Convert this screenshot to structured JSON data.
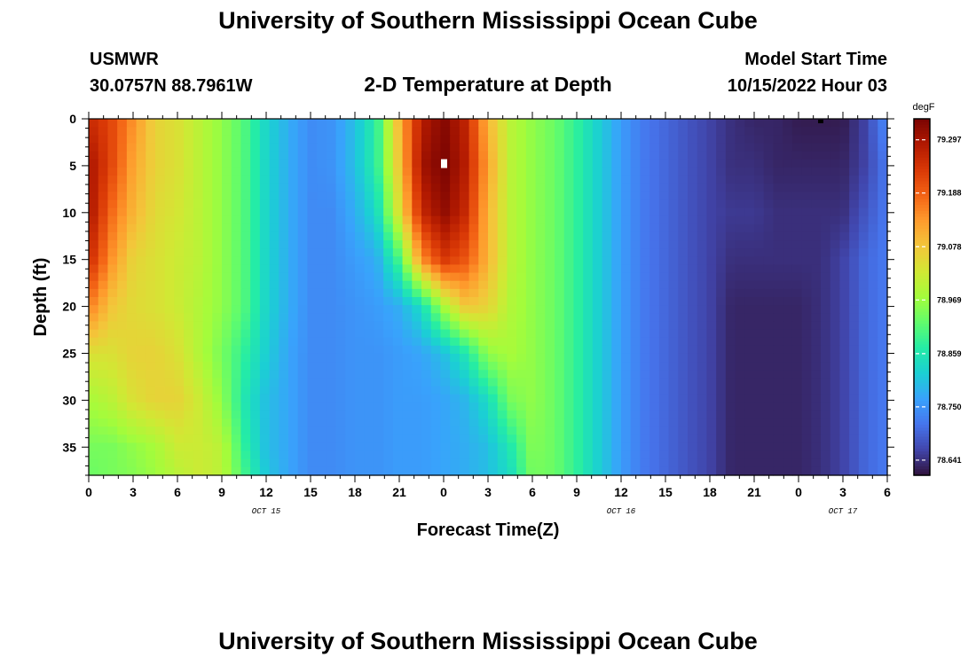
{
  "header": {
    "title": "University of Southern Mississippi Ocean Cube",
    "station_name": "USMWR",
    "station_coords": "30.0757N  88.7961W",
    "plot_title": "2-D Temperature at Depth",
    "model_label": "Model Start Time",
    "model_time": "10/15/2022 Hour 03",
    "footer_title": "University of Southern Mississippi Ocean Cube"
  },
  "chart_data": {
    "type": "heatmap",
    "title": "2-D Temperature at Depth",
    "xlabel": "Forecast Time(Z)",
    "ylabel": "Depth (ft)",
    "x_ticks": [
      "0",
      "3",
      "6",
      "9",
      "12",
      "15",
      "18",
      "21",
      "0",
      "3",
      "6",
      "9",
      "12",
      "15",
      "18",
      "21",
      "0",
      "3",
      "6"
    ],
    "x_range_hours": [
      0,
      54
    ],
    "date_labels": [
      {
        "text": "OCT 15",
        "at_hour": 12
      },
      {
        "text": "OCT 16",
        "at_hour": 36
      },
      {
        "text": "OCT 17",
        "at_hour": 51
      }
    ],
    "y_ticks": [
      0,
      5,
      10,
      15,
      20,
      25,
      30,
      35
    ],
    "ylim": [
      0,
      38
    ],
    "y_inverted": true,
    "colorbar": {
      "unit": "degF",
      "min": 78.61,
      "max": 79.34,
      "tick_labels": [
        "79.297",
        "79.188",
        "79.078",
        "78.969",
        "78.859",
        "78.750",
        "78.641"
      ],
      "colormap": [
        "#30123b",
        "#4145ab",
        "#4675ed",
        "#39a2fc",
        "#1bcfd4",
        "#24eca6",
        "#61fc6c",
        "#a4fc3b",
        "#d1e834",
        "#f3c63a",
        "#fe9b2d",
        "#f36315",
        "#d93806",
        "#b11901",
        "#7a0402"
      ]
    },
    "grid": false,
    "series_description": "Temperature (degF) by forecast hour and depth",
    "x": [
      0,
      1.5,
      3,
      4.5,
      6,
      7.5,
      9,
      10.5,
      12,
      13.5,
      15,
      16.5,
      18,
      19.5,
      21,
      22.5,
      24,
      25.5,
      27,
      28.5,
      30,
      31.5,
      33,
      34.5,
      36,
      37.5,
      39,
      40.5,
      42,
      43.5,
      45,
      46.5,
      48,
      49.5,
      51,
      52.5,
      54
    ],
    "depths": [
      0,
      5,
      10,
      15,
      20,
      25,
      30,
      35,
      38
    ],
    "values": [
      [
        79.26,
        79.22,
        79.14,
        79.06,
        79.04,
        79.0,
        78.96,
        78.91,
        78.83,
        78.78,
        78.74,
        78.75,
        78.8,
        78.88,
        79.1,
        79.28,
        79.33,
        79.27,
        79.1,
        79.0,
        78.96,
        78.93,
        78.88,
        78.82,
        78.76,
        78.72,
        78.7,
        78.68,
        78.66,
        78.64,
        78.63,
        78.63,
        78.62,
        78.62,
        78.62,
        78.66,
        78.74
      ],
      [
        79.3,
        79.22,
        79.12,
        79.06,
        79.04,
        79.0,
        78.96,
        78.91,
        78.83,
        78.78,
        78.74,
        78.75,
        78.8,
        78.88,
        79.08,
        79.3,
        79.34,
        79.28,
        79.12,
        79.0,
        78.96,
        78.93,
        78.88,
        78.82,
        78.76,
        78.72,
        78.7,
        78.68,
        78.66,
        78.64,
        78.64,
        78.63,
        78.63,
        78.63,
        78.63,
        78.66,
        78.72
      ],
      [
        79.3,
        79.18,
        79.1,
        79.05,
        79.03,
        79.0,
        78.96,
        78.91,
        78.83,
        78.78,
        78.74,
        78.74,
        78.78,
        78.84,
        79.04,
        79.26,
        79.32,
        79.26,
        79.1,
        79.0,
        78.96,
        78.93,
        78.88,
        78.82,
        78.76,
        78.72,
        78.7,
        78.68,
        78.66,
        78.65,
        78.65,
        78.64,
        78.64,
        78.64,
        78.64,
        78.68,
        78.72
      ],
      [
        79.26,
        79.14,
        79.06,
        79.04,
        79.02,
        79.0,
        78.96,
        78.91,
        78.83,
        78.78,
        78.74,
        78.74,
        78.76,
        78.78,
        78.9,
        79.14,
        79.24,
        79.2,
        79.1,
        79.0,
        78.96,
        78.93,
        78.88,
        78.82,
        78.76,
        78.72,
        78.7,
        78.68,
        78.66,
        78.64,
        78.64,
        78.64,
        78.64,
        78.64,
        78.66,
        78.7,
        78.72
      ],
      [
        79.16,
        79.08,
        79.05,
        79.04,
        79.02,
        78.99,
        78.96,
        78.91,
        78.83,
        78.78,
        78.74,
        78.74,
        78.75,
        78.76,
        78.78,
        78.84,
        78.98,
        79.08,
        79.06,
        78.99,
        78.96,
        78.93,
        78.88,
        78.82,
        78.76,
        78.72,
        78.7,
        78.68,
        78.66,
        78.63,
        78.63,
        78.63,
        78.63,
        78.64,
        78.66,
        78.7,
        78.72
      ],
      [
        79.04,
        79.04,
        79.06,
        79.06,
        79.04,
        78.99,
        78.94,
        78.88,
        78.82,
        78.77,
        78.74,
        78.74,
        78.75,
        78.75,
        78.76,
        78.77,
        78.8,
        78.86,
        78.96,
        78.98,
        78.96,
        78.93,
        78.88,
        78.82,
        78.76,
        78.72,
        78.7,
        78.68,
        78.66,
        78.63,
        78.63,
        78.63,
        78.63,
        78.64,
        78.66,
        78.7,
        78.72
      ],
      [
        78.98,
        79.0,
        79.04,
        79.06,
        79.06,
        79.02,
        78.96,
        78.86,
        78.8,
        78.77,
        78.74,
        78.74,
        78.75,
        78.75,
        78.76,
        78.76,
        78.77,
        78.79,
        78.84,
        78.94,
        78.96,
        78.93,
        78.88,
        78.82,
        78.76,
        78.72,
        78.7,
        78.68,
        78.66,
        78.63,
        78.63,
        78.63,
        78.63,
        78.64,
        78.66,
        78.7,
        78.72
      ],
      [
        78.94,
        78.94,
        78.96,
        78.98,
        79.02,
        79.02,
        79.0,
        78.88,
        78.8,
        78.77,
        78.74,
        78.74,
        78.75,
        78.75,
        78.76,
        78.76,
        78.77,
        78.78,
        78.8,
        78.86,
        78.95,
        78.93,
        78.88,
        78.82,
        78.76,
        78.72,
        78.7,
        78.68,
        78.66,
        78.63,
        78.63,
        78.63,
        78.63,
        78.64,
        78.66,
        78.7,
        78.72
      ],
      [
        78.93,
        78.94,
        78.95,
        78.97,
        79.0,
        79.02,
        79.0,
        78.9,
        78.81,
        78.77,
        78.74,
        78.74,
        78.75,
        78.75,
        78.76,
        78.76,
        78.77,
        78.78,
        78.8,
        78.84,
        78.94,
        78.93,
        78.88,
        78.82,
        78.76,
        78.72,
        78.7,
        78.68,
        78.66,
        78.63,
        78.63,
        78.63,
        78.63,
        78.64,
        78.66,
        78.7,
        78.72
      ]
    ]
  }
}
